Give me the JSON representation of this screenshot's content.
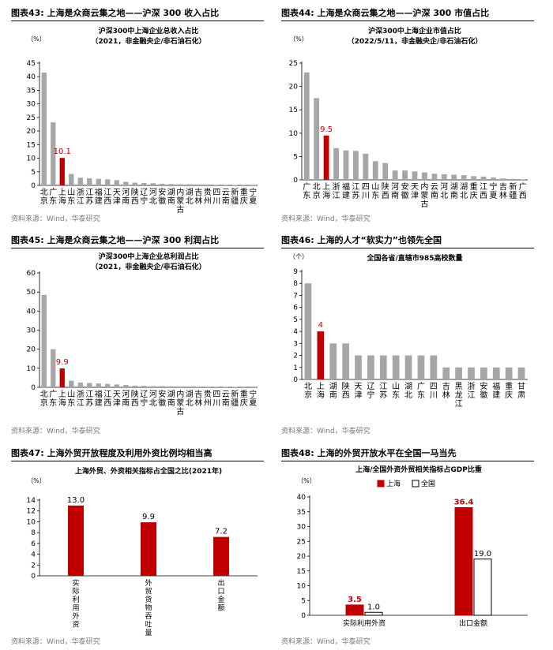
{
  "source_text": "资料来源：Wind，华泰研究",
  "colors": {
    "gray": "#a6a6a6",
    "red": "#c00000",
    "black": "#000000"
  },
  "chart_data": [
    {
      "id": "c43",
      "type": "bar",
      "fig_title": "图表43:  上海是众商云集之地——沪深 300 收入占比",
      "title": "沪深300中上海企业总收入占比",
      "subtitle": "（2021，非金融央企/非石油石化）",
      "unit": "（%）",
      "ylim": [
        0,
        45
      ],
      "yticks": [
        0,
        5,
        10,
        15,
        20,
        25,
        30,
        35,
        40,
        45
      ],
      "categories": [
        "北京",
        "广东",
        "上海",
        "山东",
        "浙江",
        "江苏",
        "福建",
        "江西",
        "天津",
        "河南",
        "陕西",
        "辽宁",
        "河北",
        "安徽",
        "湖南",
        "内蒙古",
        "湖北",
        "吉林",
        "贵州",
        "四川",
        "云南",
        "新疆",
        "重庆",
        "宁夏"
      ],
      "values": [
        41.5,
        23.2,
        10.1,
        4.2,
        2.8,
        2.6,
        2.4,
        2.2,
        1.9,
        1.3,
        1.0,
        0.9,
        0.8,
        0.6,
        0.5,
        0.4,
        0.4,
        0.3,
        0.3,
        0.2,
        0.2,
        0.15,
        0.1,
        0.1
      ],
      "highlight": 2,
      "label": "10.1"
    },
    {
      "id": "c44",
      "type": "bar",
      "fig_title": "图表44:  上海是众商云集之地——沪深 300 市值占比",
      "title": "沪深300中上海企业市值占比",
      "subtitle": "（2022/5/11，非金融央企/非石油石化）",
      "unit": "（%）",
      "ylim": [
        0,
        25
      ],
      "yticks": [
        0,
        5,
        10,
        15,
        20,
        25
      ],
      "categories": [
        "广东",
        "北京",
        "上海",
        "浙江",
        "福建",
        "江苏",
        "四川",
        "山东",
        "陕西",
        "河南",
        "安徽",
        "天津",
        "内蒙古",
        "云南",
        "河北",
        "湖南",
        "湖北",
        "重庆",
        "江西",
        "宁夏",
        "吉林",
        "新疆",
        "广西"
      ],
      "values": [
        23.0,
        17.5,
        9.5,
        6.8,
        6.3,
        6.2,
        5.6,
        4.0,
        3.6,
        2.0,
        2.0,
        1.8,
        1.6,
        1.3,
        1.2,
        1.1,
        1.0,
        0.8,
        0.7,
        0.5,
        0.3,
        0.2,
        0.1
      ],
      "highlight": 2,
      "label": "9.5"
    },
    {
      "id": "c45",
      "type": "bar",
      "fig_title": "图表45:  上海是众商云集之地——沪深 300 利润占比",
      "title": "沪深300中上海企业总利润占比",
      "subtitle": "（2021，非金融央企/非石油石化）",
      "unit": "",
      "ylim": [
        0,
        60
      ],
      "yticks": [
        0,
        10,
        20,
        30,
        40,
        50,
        60
      ],
      "categories": [
        "北京",
        "广东",
        "上海",
        "山东",
        "浙江",
        "江苏",
        "福建",
        "江西",
        "天津",
        "河南",
        "陕西",
        "辽宁",
        "河北",
        "安徽",
        "湖南",
        "内蒙古",
        "湖北",
        "吉林",
        "贵州",
        "四川",
        "云南",
        "新疆",
        "重庆",
        "宁夏"
      ],
      "values": [
        48.5,
        20.0,
        9.9,
        3.5,
        2.5,
        2.3,
        2.0,
        1.8,
        1.5,
        1.2,
        0.9,
        0.8,
        0.6,
        0.6,
        0.5,
        0.4,
        0.4,
        0.3,
        0.3,
        0.3,
        0.2,
        0.2,
        0.1,
        0.1
      ],
      "highlight": 2,
      "label": "9.9"
    },
    {
      "id": "c46",
      "type": "bar",
      "fig_title": "图表46:  上海的人才“软实力”也领先全国",
      "title": "全国各省/直辖市985高校数量",
      "subtitle": "",
      "unit": "（个）",
      "ylim": [
        0,
        9
      ],
      "yticks": [
        0,
        1,
        2,
        3,
        4,
        5,
        6,
        7,
        8,
        9
      ],
      "categories": [
        "北京",
        "上海",
        "湖南",
        "陕西",
        "天津",
        "辽宁",
        "江苏",
        "山东",
        "湖北",
        "广东",
        "四川",
        "吉林",
        "黑龙江",
        "浙江",
        "安徽",
        "福建",
        "重庆",
        "甘肃"
      ],
      "values": [
        8,
        4,
        3,
        3,
        2,
        2,
        2,
        2,
        2,
        2,
        2,
        1,
        1,
        1,
        1,
        1,
        1,
        1
      ],
      "highlight": 1,
      "label": "4"
    },
    {
      "id": "c47",
      "type": "bar",
      "fig_title": "图表47:  上海外贸开放程度及利用外资比例均相当高",
      "title": "上海外贸、外资相关指标占全国之比(2021年)",
      "subtitle": "",
      "unit": "（%）",
      "ylim": [
        0,
        14
      ],
      "yticks": [
        0,
        2,
        4,
        6,
        8,
        10,
        12,
        14
      ],
      "categories": [
        "实际利用外资",
        "外贸货物吞吐量",
        "出口金额"
      ],
      "values": [
        13.0,
        9.9,
        7.2
      ],
      "labels": [
        "13.0",
        "9.9",
        "7.2"
      ]
    },
    {
      "id": "c48",
      "type": "bar",
      "fig_title": "图表48:  上海的外贸开放水平在全国一马当先",
      "title": "上海/全国外资外贸相关指标占GDP比重",
      "subtitle": "",
      "unit": "（%）",
      "ylim": [
        0,
        40
      ],
      "yticks": [
        0,
        5,
        10,
        15,
        20,
        25,
        30,
        35,
        40
      ],
      "categories": [
        "实际利用外资",
        "出口金额"
      ],
      "series": [
        {
          "name": "上海",
          "values": [
            3.5,
            36.4
          ],
          "labels": [
            "3.5",
            "36.4"
          ]
        },
        {
          "name": "全国",
          "values": [
            1.0,
            19.0
          ],
          "labels": [
            "1.0",
            "19.0"
          ]
        }
      ]
    }
  ]
}
